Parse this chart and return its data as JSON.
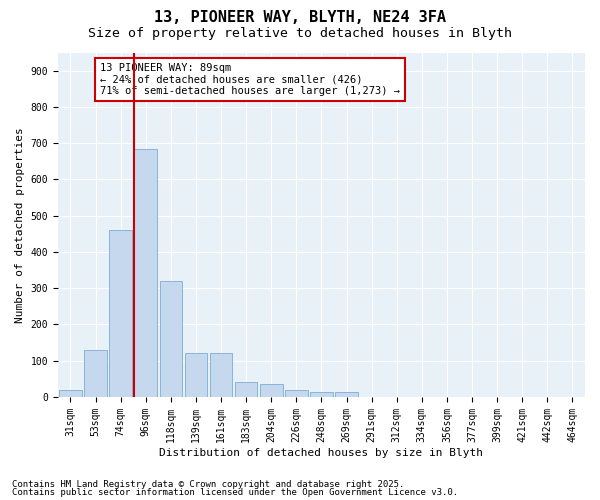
{
  "title1": "13, PIONEER WAY, BLYTH, NE24 3FA",
  "title2": "Size of property relative to detached houses in Blyth",
  "xlabel": "Distribution of detached houses by size in Blyth",
  "ylabel": "Number of detached properties",
  "categories": [
    "31sqm",
    "53sqm",
    "74sqm",
    "96sqm",
    "118sqm",
    "139sqm",
    "161sqm",
    "183sqm",
    "204sqm",
    "226sqm",
    "248sqm",
    "269sqm",
    "291sqm",
    "312sqm",
    "334sqm",
    "356sqm",
    "377sqm",
    "399sqm",
    "421sqm",
    "442sqm",
    "464sqm"
  ],
  "values": [
    20,
    130,
    460,
    685,
    320,
    120,
    120,
    40,
    35,
    20,
    15,
    15,
    0,
    0,
    0,
    0,
    0,
    0,
    0,
    0,
    0
  ],
  "bar_color": "#c5d8ee",
  "bar_edge_color": "#7aadd4",
  "red_line_index": 2.55,
  "annotation_text": "13 PIONEER WAY: 89sqm\n← 24% of detached houses are smaller (426)\n71% of semi-detached houses are larger (1,273) →",
  "annotation_box_color": "#ffffff",
  "annotation_box_edge": "#cc0000",
  "red_line_color": "#cc0000",
  "ylim": [
    0,
    950
  ],
  "yticks": [
    0,
    100,
    200,
    300,
    400,
    500,
    600,
    700,
    800,
    900
  ],
  "footer1": "Contains HM Land Registry data © Crown copyright and database right 2025.",
  "footer2": "Contains public sector information licensed under the Open Government Licence v3.0.",
  "plot_bg_color": "#e8f0f8",
  "title1_fontsize": 11,
  "title2_fontsize": 9.5,
  "annot_fontsize": 7.5,
  "axis_fontsize": 8,
  "tick_fontsize": 7,
  "footer_fontsize": 6.5
}
